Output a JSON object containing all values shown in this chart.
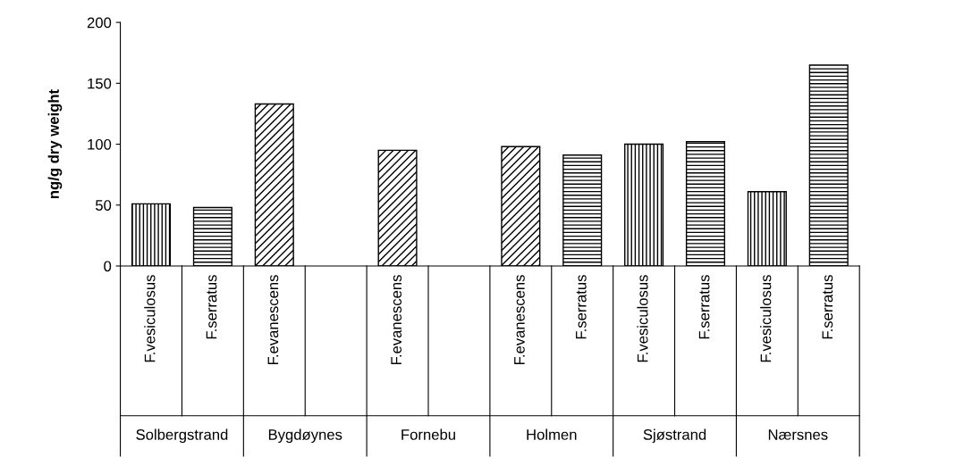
{
  "chart_data": {
    "type": "bar",
    "ylabel": "ng/g dry weight",
    "categories": [
      "F.vesiculosus",
      "F.serratus",
      "F.evanescens",
      null,
      "F.evanescens",
      null,
      "F.evanescens",
      "F.serratus",
      "F.vesiculosus",
      "F.serratus",
      "F.vesiculosus",
      "F.serratus"
    ],
    "series": [
      {
        "color": "#000000",
        "values": [
          51,
          null,
          null,
          null,
          null,
          null,
          null,
          null,
          100,
          null,
          61,
          null
        ]
      },
      {
        "color": "#000000",
        "values": [
          null,
          48,
          null,
          null,
          null,
          null,
          null,
          91,
          null,
          102,
          null,
          165
        ]
      },
      {
        "color": "#000000",
        "values": [
          null,
          null,
          133,
          null,
          95,
          null,
          98,
          null,
          null,
          null,
          null,
          null
        ]
      }
    ],
    "annotations": [
      "Solbergstrand",
      "Bygdøynes",
      "Fornebu",
      "Holmen",
      "Sjøstrand",
      "Nærsnes"
    ],
    "ylim": [
      0,
      200
    ],
    "yticks": [
      0,
      50,
      100,
      150,
      200
    ],
    "grid": false
  }
}
